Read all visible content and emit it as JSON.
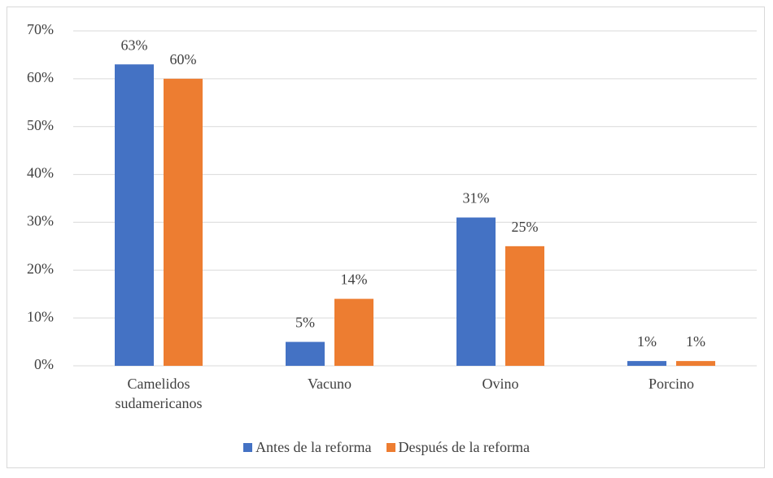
{
  "chart_data": {
    "type": "bar",
    "categories": [
      "Camelidos sudamericanos",
      "Vacuno",
      "Ovino",
      "Porcino"
    ],
    "series": [
      {
        "name": "Antes de la reforma",
        "color": "#4472c4",
        "values": [
          63,
          5,
          31,
          1
        ],
        "value_labels": [
          "63%",
          "5%",
          "31%",
          "1%"
        ]
      },
      {
        "name": "Después de la reforma",
        "color": "#ed7d31",
        "values": [
          60,
          14,
          25,
          1
        ],
        "value_labels": [
          "60%",
          "14%",
          "25%",
          "1%"
        ]
      }
    ],
    "ylim": [
      0,
      70
    ],
    "yticks": [
      {
        "value": 0,
        "label": "0%"
      },
      {
        "value": 10,
        "label": "10%"
      },
      {
        "value": 20,
        "label": "20%"
      },
      {
        "value": 30,
        "label": "30%"
      },
      {
        "value": 40,
        "label": "40%"
      },
      {
        "value": 50,
        "label": "50%"
      },
      {
        "value": 60,
        "label": "60%"
      },
      {
        "value": 70,
        "label": "70%"
      }
    ],
    "grid": true,
    "legend": "bottom"
  }
}
